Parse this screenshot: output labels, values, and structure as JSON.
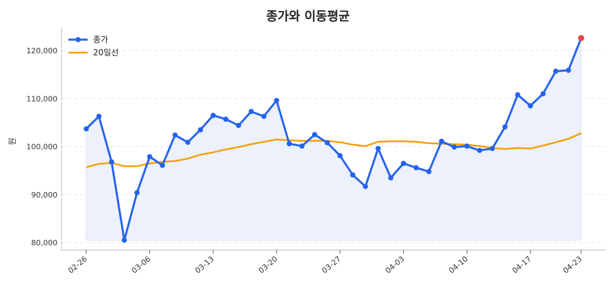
{
  "chart_data": {
    "type": "line",
    "title": "종가와 이동평균",
    "ylabel": "원",
    "xlabel": "",
    "ylim": [
      78400,
      124800
    ],
    "yticks": [
      80000,
      90000,
      100000,
      110000,
      120000
    ],
    "ytick_labels": [
      "80,000",
      "90,000",
      "100,000",
      "110,000",
      "120,000"
    ],
    "x_tick_labels": [
      "02-26",
      "03-06",
      "03-13",
      "03-20",
      "03-27",
      "04-03",
      "04-10",
      "04-17",
      "04-23"
    ],
    "x_tick_index": [
      0,
      5,
      10,
      15,
      20,
      25,
      30,
      35,
      39
    ],
    "grid": "horizontal dashed",
    "legend_position": "top-left",
    "series": [
      {
        "name": "종가",
        "color": "#2563eb",
        "markers": true,
        "fill": "#ecf1fc",
        "values": [
          103700,
          106300,
          96800,
          80500,
          90400,
          97900,
          96100,
          102400,
          100900,
          103500,
          106500,
          105700,
          104400,
          107300,
          106300,
          109600,
          100600,
          100100,
          102500,
          100800,
          98100,
          94100,
          91700,
          99600,
          93500,
          96500,
          95600,
          94800,
          101100,
          99900,
          100100,
          99200,
          99600,
          104100,
          110800,
          108500,
          111000,
          115700,
          115900,
          122600
        ]
      },
      {
        "name": "20일선",
        "color": "#f59e0b",
        "markers": false,
        "values": [
          95700,
          96400,
          96600,
          95900,
          95900,
          96500,
          96800,
          97000,
          97500,
          98300,
          98800,
          99400,
          99900,
          100500,
          101000,
          101500,
          101300,
          101200,
          101200,
          101200,
          100900,
          100400,
          100100,
          101000,
          101100,
          101100,
          101000,
          100700,
          100600,
          100500,
          100400,
          100100,
          99700,
          99500,
          99700,
          99600,
          100200,
          100900,
          101600,
          102800
        ]
      }
    ],
    "highlight_last_point_color": "#ef4444"
  }
}
